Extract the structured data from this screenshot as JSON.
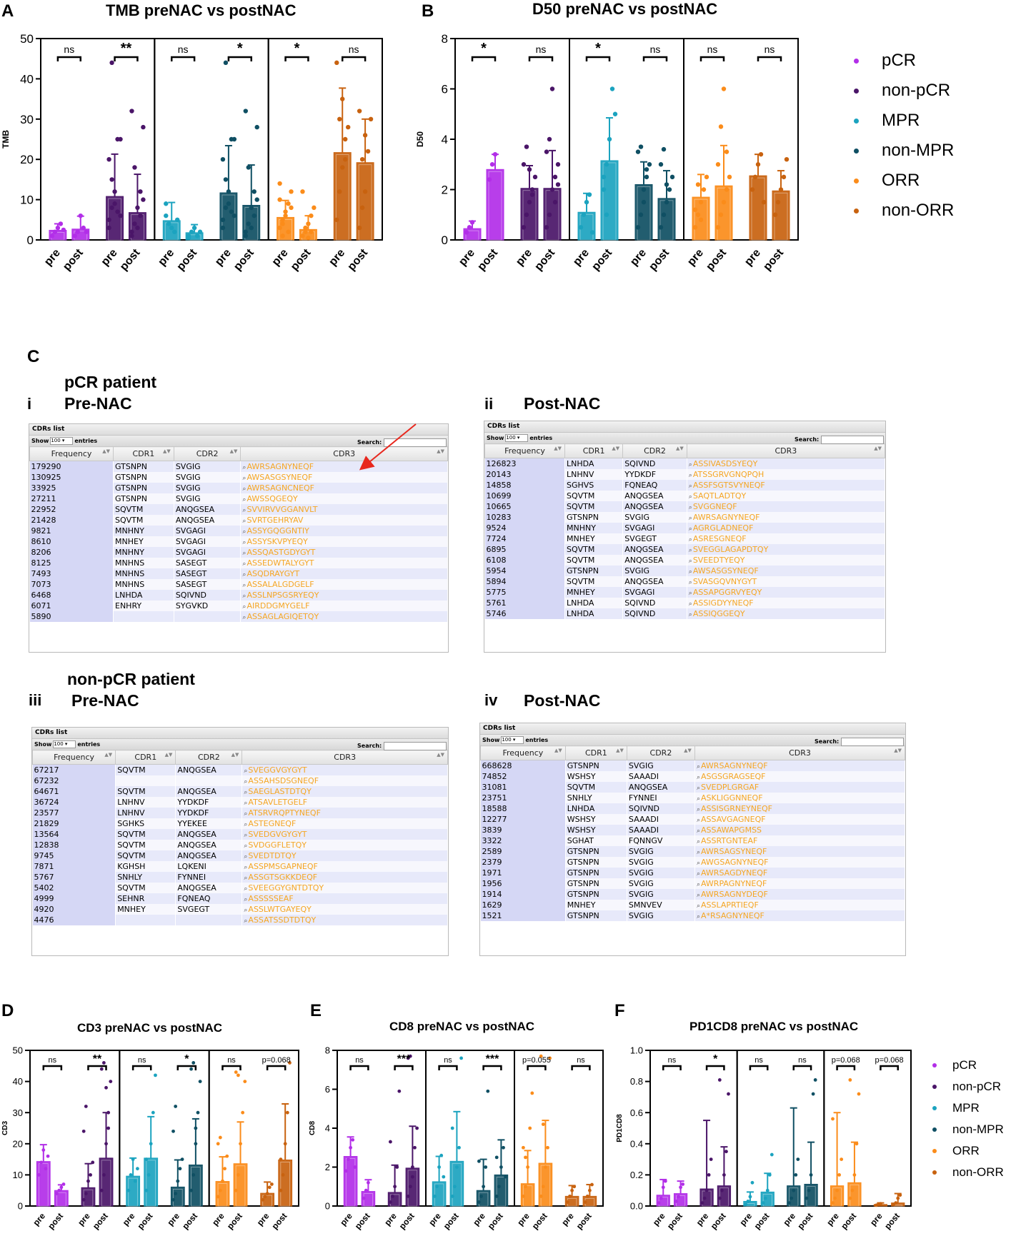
{
  "panels": {
    "A": {
      "label": "A"
    },
    "B": {
      "label": "B"
    },
    "C": {
      "label": "C",
      "pcr_patient": "pCR patient",
      "nonpcr_patient": "non-pCR patient",
      "roman_i": "i",
      "roman_ii": "ii",
      "roman_iii": "iii",
      "roman_iv": "iv",
      "pre_nac": "Pre-NAC",
      "post_nac": "Post-NAC"
    },
    "D": {
      "label": "D"
    },
    "E": {
      "label": "E"
    },
    "F": {
      "label": "F"
    }
  },
  "legend": {
    "items": [
      {
        "label": "pCR",
        "color": "#b22ee8"
      },
      {
        "label": "non-pCR",
        "color": "#4a1568"
      },
      {
        "label": "MPR",
        "color": "#1ba3bf"
      },
      {
        "label": "non-MPR",
        "color": "#0f4f63"
      },
      {
        "label": "ORR",
        "color": "#fb8c1a"
      },
      {
        "label": "non-ORR",
        "color": "#c8620f"
      }
    ]
  },
  "chart_data": [
    {
      "id": "A",
      "type": "bar",
      "title": "TMB preNAC vs postNAC",
      "ylabel": "TMB",
      "xlabel": "",
      "ylim": [
        0,
        50
      ],
      "yticks": [
        0,
        10,
        20,
        30,
        40,
        50
      ],
      "categories": [
        "pre",
        "post",
        "pre",
        "post",
        "pre",
        "post",
        "pre",
        "post",
        "pre",
        "post",
        "pre",
        "post"
      ],
      "groups": [
        "pCR",
        "non-pCR",
        "MPR",
        "non-MPR",
        "ORR",
        "non-ORR"
      ],
      "values": [
        2.4,
        2.7,
        10.8,
        6.8,
        4.8,
        1.8,
        11.7,
        8.6,
        5.6,
        2.6,
        21.7,
        19.2
      ],
      "errors": [
        1.6,
        3.2,
        10.5,
        9.5,
        4.5,
        2.0,
        11.7,
        10.0,
        4.2,
        3.4,
        16.0,
        10.8
      ],
      "significance": [
        "ns",
        "**",
        "ns",
        "*",
        "*",
        "ns"
      ],
      "points": [
        [
          1,
          2,
          3,
          4,
          2.5
        ],
        [
          1,
          2,
          6,
          3,
          2
        ],
        [
          5,
          8,
          12,
          25,
          25,
          20,
          15,
          9,
          7,
          6,
          3,
          44
        ],
        [
          2,
          4,
          8,
          12,
          28,
          32,
          18,
          3,
          6,
          10,
          1
        ],
        [
          9,
          4,
          3,
          2,
          5,
          6
        ],
        [
          1,
          2,
          3,
          1,
          2,
          0.5
        ],
        [
          5,
          8,
          12,
          25,
          25,
          20,
          15,
          9,
          7,
          6,
          3,
          44
        ],
        [
          2,
          4,
          8,
          12,
          28,
          32,
          18,
          3,
          6,
          10,
          1
        ],
        [
          3,
          5,
          7,
          9,
          12,
          14,
          4,
          6,
          2,
          8,
          10,
          1
        ],
        [
          1,
          2,
          4,
          6,
          8,
          12,
          3,
          0.5,
          2
        ],
        [
          5,
          12,
          18,
          25,
          28,
          44,
          30,
          35,
          20
        ],
        [
          3,
          8,
          12,
          22,
          30,
          32,
          20,
          26
        ]
      ]
    },
    {
      "id": "B",
      "type": "bar",
      "title": "D50 preNAC vs postNAC",
      "ylabel": "D50",
      "xlabel": "",
      "ylim": [
        0,
        8
      ],
      "yticks": [
        0,
        2,
        4,
        6,
        8
      ],
      "categories": [
        "pre",
        "post",
        "pre",
        "post",
        "pre",
        "post",
        "pre",
        "post",
        "pre",
        "post",
        "pre",
        "post"
      ],
      "groups": [
        "pCR",
        "non-pCR",
        "MPR",
        "non-MPR",
        "ORR",
        "non-ORR"
      ],
      "values": [
        0.45,
        2.8,
        2.05,
        2.05,
        1.1,
        3.15,
        2.2,
        1.65,
        1.7,
        2.15,
        2.55,
        1.95
      ],
      "errors": [
        0.3,
        0.6,
        0.9,
        1.5,
        0.75,
        1.7,
        0.9,
        1.1,
        0.9,
        1.6,
        0.85,
        0.8
      ],
      "significance": [
        "*",
        "ns",
        "*",
        "ns",
        "ns",
        "ns"
      ],
      "points": [
        [
          0.3,
          0.5,
          0.7
        ],
        [
          2.4,
          3.0,
          3.4
        ],
        [
          0.5,
          1,
          1.5,
          2,
          2.5,
          3,
          3.7,
          2.8,
          1.8
        ],
        [
          0.5,
          1,
          2,
          2.5,
          3,
          3.5,
          4,
          6,
          1.5,
          2.2
        ],
        [
          0.5,
          1,
          1.5,
          1.8,
          0.3
        ],
        [
          2,
          3,
          4,
          6,
          5,
          2.5,
          1
        ],
        [
          0.5,
          1,
          2,
          2.5,
          3,
          3.5,
          3.7,
          1.5,
          2.8
        ],
        [
          0.5,
          1,
          1.5,
          2,
          2.5,
          3,
          3.6,
          2.2
        ],
        [
          0.5,
          1,
          1.5,
          2,
          2.5,
          1.2,
          2.2,
          0.8
        ],
        [
          0.5,
          1,
          1.5,
          2,
          2.5,
          3,
          4.5,
          6,
          3.5
        ],
        [
          2,
          2.5,
          3,
          3.4,
          1.5
        ],
        [
          1,
          1.5,
          2,
          2.5,
          3.2
        ]
      ]
    },
    {
      "id": "D",
      "type": "bar",
      "title": "CD3 preNAC vs postNAC",
      "ylabel": "CD3",
      "xlabel": "",
      "ylim": [
        0,
        50
      ],
      "yticks": [
        0,
        10,
        20,
        30,
        40,
        50
      ],
      "categories": [
        "pre",
        "post",
        "pre",
        "post",
        "pre",
        "post",
        "pre",
        "post",
        "pre",
        "post",
        "pre",
        "post"
      ],
      "groups": [
        "pCR",
        "non-pCR",
        "MPR",
        "non-MPR",
        "ORR",
        "non-ORR"
      ],
      "values": [
        14.3,
        5.0,
        5.9,
        15.4,
        9.6,
        15.4,
        6.1,
        13.2,
        7.9,
        13.6,
        4.1,
        14.8
      ],
      "errors": [
        5.4,
        1.8,
        7.7,
        14.6,
        5.8,
        13.3,
        8.7,
        14.8,
        7.9,
        13.4,
        3.6,
        18.0
      ],
      "significance": [
        "ns",
        "**",
        "ns",
        "*",
        "ns",
        "p=0.068"
      ],
      "points": [
        [
          10,
          14,
          18,
          12,
          16
        ],
        [
          4,
          5,
          6,
          7
        ],
        [
          2,
          4,
          8,
          10,
          14,
          24,
          32
        ],
        [
          5,
          10,
          20,
          30,
          40,
          44,
          46,
          38,
          25
        ],
        [
          5,
          10,
          15,
          8,
          12
        ],
        [
          5,
          10,
          20,
          30,
          42,
          15
        ],
        [
          2,
          4,
          8,
          12,
          15,
          24,
          32
        ],
        [
          5,
          10,
          20,
          30,
          40,
          44,
          46,
          25
        ],
        [
          3,
          5,
          8,
          12,
          16,
          20,
          22
        ],
        [
          5,
          10,
          20,
          30,
          40,
          43,
          42
        ],
        [
          2,
          3,
          4,
          6,
          7
        ],
        [
          5,
          10,
          20,
          30,
          46,
          15
        ]
      ]
    },
    {
      "id": "E",
      "type": "bar",
      "title": "CD8 preNAC vs postNAC",
      "ylabel": "CD8",
      "xlabel": "",
      "ylim": [
        0,
        8
      ],
      "yticks": [
        0,
        2,
        4,
        6,
        8
      ],
      "categories": [
        "pre",
        "post",
        "pre",
        "post",
        "pre",
        "post",
        "pre",
        "post",
        "pre",
        "post",
        "pre",
        "post"
      ],
      "groups": [
        "pCR",
        "non-pCR",
        "MPR",
        "non-MPR",
        "ORR",
        "non-ORR"
      ],
      "values": [
        2.55,
        0.75,
        0.7,
        1.95,
        1.25,
        2.3,
        0.8,
        1.6,
        1.15,
        2.2,
        0.5,
        0.5
      ],
      "errors": [
        1.0,
        0.6,
        1.4,
        2.15,
        1.3,
        2.55,
        1.6,
        1.8,
        1.7,
        2.2,
        0.55,
        0.6
      ],
      "significance": [
        "ns",
        "***",
        "ns",
        "***",
        "p=0.055",
        "ns"
      ],
      "points": [
        [
          1.8,
          2.4,
          3,
          3.4,
          2
        ],
        [
          0.4,
          0.8,
          1.2
        ],
        [
          0.2,
          0.5,
          1,
          2,
          5.9,
          3.3
        ],
        [
          0.5,
          1,
          2,
          3,
          4,
          7.6,
          7.7,
          1.5
        ],
        [
          0.5,
          1,
          2,
          2.6,
          1.5
        ],
        [
          0.5,
          1,
          2,
          3,
          7.6,
          4
        ],
        [
          0.2,
          0.5,
          1,
          2,
          5.9,
          2.3
        ],
        [
          0.5,
          1,
          2,
          3,
          1.5,
          2.5
        ],
        [
          0.5,
          1,
          2,
          4,
          5.8,
          3,
          2.5
        ],
        [
          0.5,
          1,
          2,
          3,
          7.6,
          7.7,
          4.2
        ],
        [
          0.2,
          0.5,
          0.8,
          1
        ],
        [
          0.2,
          0.5,
          0.8,
          1.1
        ]
      ]
    },
    {
      "id": "F",
      "type": "bar",
      "title": "PD1CD8 preNAC vs postNAC",
      "ylabel": "PD1CD8",
      "xlabel": "",
      "ylim": [
        0,
        1.0
      ],
      "yticks": [
        0.0,
        0.2,
        0.4,
        0.6,
        0.8,
        1.0
      ],
      "categories": [
        "pre",
        "post",
        "pre",
        "post",
        "pre",
        "post",
        "pre",
        "post",
        "pre",
        "post",
        "pre",
        "post"
      ],
      "groups": [
        "pCR",
        "non-pCR",
        "MPR",
        "non-MPR",
        "ORR",
        "non-ORR"
      ],
      "values": [
        0.07,
        0.08,
        0.11,
        0.13,
        0.03,
        0.09,
        0.13,
        0.14,
        0.13,
        0.15,
        0.01,
        0.02
      ],
      "errors": [
        0.1,
        0.08,
        0.44,
        0.25,
        0.06,
        0.12,
        0.5,
        0.27,
        0.47,
        0.26,
        0.01,
        0.06
      ],
      "significance": [
        "ns",
        "*",
        "ns",
        "ns",
        "p=0.068",
        "p=0.068"
      ],
      "points": [
        [
          0.02,
          0.05,
          0.12,
          0.16
        ],
        [
          0.03,
          0.06,
          0.12,
          0.14
        ],
        [
          0.02,
          0.05,
          0.1,
          0.2,
          0.3
        ],
        [
          0.05,
          0.1,
          0.2,
          0.35,
          0.72,
          0.81
        ],
        [
          0.01,
          0.03,
          0.06,
          0.15
        ],
        [
          0.02,
          0.05,
          0.1,
          0.2,
          0.33
        ],
        [
          0.02,
          0.05,
          0.1,
          0.2,
          0.3
        ],
        [
          0.05,
          0.1,
          0.2,
          0.72,
          0.81
        ],
        [
          0.02,
          0.05,
          0.1,
          0.2,
          0.3,
          0.56
        ],
        [
          0.05,
          0.1,
          0.2,
          0.4,
          0.72,
          0.81
        ],
        [
          0.005,
          0.01,
          0.015
        ],
        [
          0.01,
          0.02,
          0.05,
          0.07
        ]
      ]
    }
  ],
  "tables": {
    "title": "CDRs list",
    "show": "Show",
    "show_value": "100",
    "entries": "entries",
    "search": "Search:",
    "columns": [
      "Frequency",
      "CDR1",
      "CDR2",
      "CDR3"
    ],
    "pcr_pre": [
      [
        "179290",
        "GTSNPN",
        "SVGIG",
        "AWRSAGNYNEQF"
      ],
      [
        "130925",
        "GTSNPN",
        "SVGIG",
        "AWSASGSYNEQF"
      ],
      [
        "33925",
        "GTSNPN",
        "SVGIG",
        "AWRSAGNCNEQF"
      ],
      [
        "27211",
        "GTSNPN",
        "SVGIG",
        "AWSSQGEQY"
      ],
      [
        "22952",
        "SQVTM",
        "ANQGSEA",
        "SVVIRVVGGANVLT"
      ],
      [
        "21428",
        "SQVTM",
        "ANQGSEA",
        "SVRTGEHRYAV"
      ],
      [
        "9821",
        "MNHNY",
        "SVGAGI",
        "ASSYGQGGNTIY"
      ],
      [
        "8610",
        "MNHEY",
        "SVGAGI",
        "ASSYSKVPYEQY"
      ],
      [
        "8206",
        "MNHNY",
        "SVGAGI",
        "ASSQASTGDYGYT"
      ],
      [
        "8125",
        "MNHNS",
        "SASEGT",
        "ASSEDWTALYGYT"
      ],
      [
        "7493",
        "MNHNS",
        "SASEGT",
        "ASQDRAYGYT"
      ],
      [
        "7073",
        "MNHNS",
        "SASEGT",
        "ASSALALGDGELF"
      ],
      [
        "6468",
        "LNHDA",
        "SQIVND",
        "ASSLNPSGSRYEQY"
      ],
      [
        "6071",
        "ENHRY",
        "SYGVKD",
        "AIRDDGMYGELF"
      ],
      [
        "5890",
        "",
        "",
        "ASSAGLAGIQETQY"
      ]
    ],
    "pcr_post": [
      [
        "126823",
        "LNHDA",
        "SQIVND",
        "ASSIVASDSYEQY"
      ],
      [
        "20143",
        "LNHNV",
        "YYDKDF",
        "ATSSGRVGNQPQH"
      ],
      [
        "14858",
        "SGHVS",
        "FQNEAQ",
        "ASSFSGTSVYNEQF"
      ],
      [
        "10699",
        "SQVTM",
        "ANQGSEA",
        "SAQTLADTQY"
      ],
      [
        "10665",
        "SQVTM",
        "ANQGSEA",
        "SVGGNEQF"
      ],
      [
        "10283",
        "GTSNPN",
        "SVGIG",
        "AWRSAGNYNEQF"
      ],
      [
        "9524",
        "MNHNY",
        "SVGAGI",
        "AGRGLADNEQF"
      ],
      [
        "7724",
        "MNHEY",
        "SVGEGT",
        "ASRESGNEQF"
      ],
      [
        "6895",
        "SQVTM",
        "ANQGSEA",
        "SVEGGLAGAPDTQY"
      ],
      [
        "6108",
        "SQVTM",
        "ANQGSEA",
        "SVEEDTYEQY"
      ],
      [
        "5954",
        "GTSNPN",
        "SVGIG",
        "AWSASGSYNEQF"
      ],
      [
        "5894",
        "SQVTM",
        "ANQGSEA",
        "SVASGQVNYGYT"
      ],
      [
        "5775",
        "MNHEY",
        "SVGAGI",
        "ASSAPGGRVYEQY"
      ],
      [
        "5761",
        "LNHDA",
        "SQIVND",
        "ASSIGDYYNEQF"
      ],
      [
        "5746",
        "LNHDA",
        "SQIVND",
        "ASSIQGGEQY"
      ]
    ],
    "nonpcr_pre": [
      [
        "67217",
        "SQVTM",
        "ANQGSEA",
        "SVEGGVGYGYT"
      ],
      [
        "67232",
        "",
        "",
        "ASSAHSDSGNEQF"
      ],
      [
        "64671",
        "SQVTM",
        "ANQGSEA",
        "SAEGLASTDTQY"
      ],
      [
        "36724",
        "LNHNV",
        "YYDKDF",
        "ATSAVLETGELF"
      ],
      [
        "23577",
        "LNHNV",
        "YYDKDF",
        "ATSRVRQPTYNEQF"
      ],
      [
        "21829",
        "SGHKS",
        "YYEKEE",
        "ASTEGNEQF"
      ],
      [
        "13564",
        "SQVTM",
        "ANQGSEA",
        "SVEDGVGYGYT"
      ],
      [
        "12838",
        "SQVTM",
        "ANQGSEA",
        "SVDGGFLETQY"
      ],
      [
        "9745",
        "SQVTM",
        "ANQGSEA",
        "SVEDTDTQY"
      ],
      [
        "7871",
        "KGHSH",
        "LQKENI",
        "ASSPMSGAPNEQF"
      ],
      [
        "5767",
        "SNHLY",
        "FYNNEI",
        "ASSGTSGKKDEQF"
      ],
      [
        "5402",
        "SQVTM",
        "ANQGSEA",
        "SVEEGGYGNTDTQY"
      ],
      [
        "4999",
        "SEHNR",
        "FQNEAQ",
        "ASSSSSEAF"
      ],
      [
        "4920",
        "MNHEY",
        "SVGEGT",
        "ASSLWTGAYEQY"
      ],
      [
        "4476",
        "",
        "",
        "ASSATSSDTDTQY"
      ]
    ],
    "nonpcr_post": [
      [
        "668628",
        "GTSNPN",
        "SVGIG",
        "AWRSAGNYNEQF"
      ],
      [
        "74852",
        "WSHSY",
        "SAAADI",
        "ASGSGRAGSEQF"
      ],
      [
        "31081",
        "SQVTM",
        "ANQGSEA",
        "SVEDPLGRGAF"
      ],
      [
        "23751",
        "SNHLY",
        "FYNNEI",
        "ASKLIGGNNEQF"
      ],
      [
        "18588",
        "LNHDA",
        "SQIVND",
        "ASSISGRNEYNEQF"
      ],
      [
        "12277",
        "WSHSY",
        "SAAADI",
        "ASSAVGAGNEQF"
      ],
      [
        "3839",
        "WSHSY",
        "SAAADI",
        "ASSAWAPGMSS"
      ],
      [
        "3322",
        "SGHAT",
        "FQNNGV",
        "ASSRTGNTEAF"
      ],
      [
        "2589",
        "GTSNPN",
        "SVGIG",
        "AWRSAGSYNEQF"
      ],
      [
        "2379",
        "GTSNPN",
        "SVGIG",
        "AWGSAGNYNEQF"
      ],
      [
        "1971",
        "GTSNPN",
        "SVGIG",
        "AWRSAGDYNEQF"
      ],
      [
        "1956",
        "GTSNPN",
        "SVGIG",
        "AWRPAGNYNEQF"
      ],
      [
        "1914",
        "GTSNPN",
        "SVGIG",
        "AWRSAGNYDEQF"
      ],
      [
        "1629",
        "MNHEY",
        "SMNVEV",
        "ASSLAPRTIEQF"
      ],
      [
        "1521",
        "GTSNPN",
        "SVGIG",
        "A*RSAGNYNEQF"
      ]
    ]
  }
}
